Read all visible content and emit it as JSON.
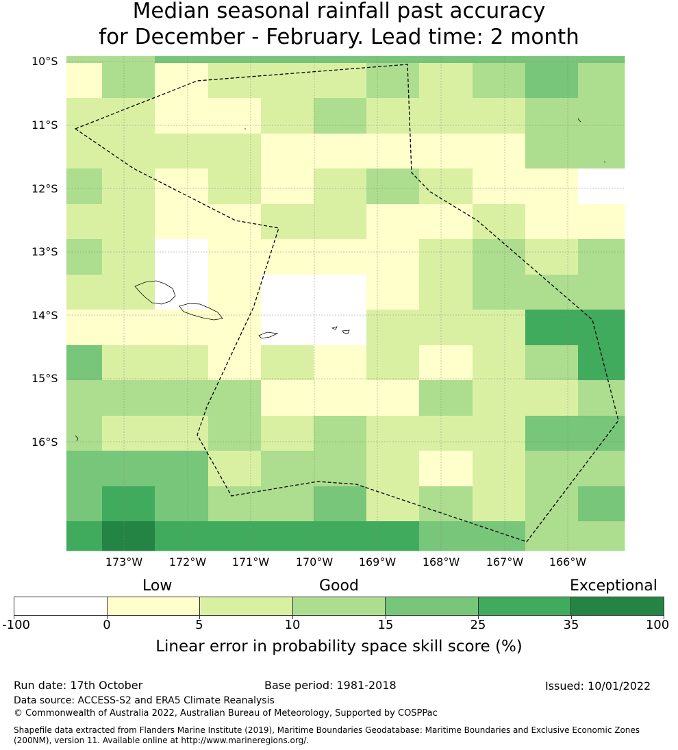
{
  "title": {
    "line1": "Median seasonal rainfall past accuracy",
    "line2": "for December - February. Lead time: 2 month"
  },
  "lat_labels": [
    "10°S",
    "11°S",
    "12°S",
    "13°S",
    "14°S",
    "15°S",
    "16°S"
  ],
  "lon_labels": [
    "173°W",
    "172°W",
    "171°W",
    "170°W",
    "169°W",
    "168°W",
    "167°W",
    "166°W"
  ],
  "legend": {
    "categories": [
      "Low",
      "Good",
      "Exceptional"
    ],
    "ticks": [
      "-100",
      "0",
      "5",
      "10",
      "15",
      "25",
      "35",
      "100"
    ],
    "colors": [
      "#ffffff",
      "#ffffcc",
      "#d9f0a3",
      "#addd8e",
      "#78c679",
      "#41ab5d",
      "#238443"
    ],
    "label": "Linear error in probability space skill score (%)"
  },
  "grid_levels": [
    [
      3,
      3,
      4,
      4,
      4,
      4,
      4,
      4,
      4,
      4,
      4
    ],
    [
      1,
      3,
      1,
      2,
      2,
      2,
      3,
      2,
      3,
      4,
      3
    ],
    [
      2,
      2,
      1,
      1,
      2,
      3,
      2,
      2,
      2,
      3,
      3
    ],
    [
      2,
      2,
      2,
      2,
      1,
      1,
      1,
      1,
      1,
      3,
      3
    ],
    [
      3,
      2,
      1,
      2,
      1,
      2,
      3,
      2,
      1,
      1,
      0
    ],
    [
      2,
      2,
      1,
      1,
      2,
      2,
      1,
      1,
      2,
      1,
      1
    ],
    [
      3,
      2,
      0,
      1,
      1,
      1,
      1,
      2,
      3,
      2,
      3
    ],
    [
      2,
      2,
      0,
      1,
      0,
      0,
      1,
      2,
      3,
      3,
      3
    ],
    [
      1,
      1,
      1,
      1,
      0,
      0,
      2,
      2,
      2,
      5,
      5
    ],
    [
      4,
      2,
      2,
      1,
      2,
      1,
      2,
      1,
      2,
      3,
      5
    ],
    [
      3,
      3,
      3,
      3,
      1,
      1,
      1,
      3,
      2,
      2,
      3
    ],
    [
      3,
      2,
      2,
      3,
      2,
      3,
      2,
      2,
      2,
      4,
      4
    ],
    [
      4,
      4,
      4,
      2,
      3,
      3,
      2,
      1,
      2,
      3,
      3
    ],
    [
      4,
      5,
      4,
      3,
      3,
      4,
      2,
      3,
      2,
      3,
      4
    ],
    [
      5,
      6,
      5,
      5,
      5,
      5,
      5,
      4,
      4,
      3,
      3
    ]
  ],
  "footer": {
    "run_date": "Run date: 17th October",
    "base_period": "Base period: 1981-2018",
    "issued": "Issued: 10/01/2022",
    "data_source": "Data source: ACCESS-S2 and ERA5 Climate Reanalysis",
    "copyright": "© Commonwealth of Australia 2022, Australian Bureau of Meteorology, Supported by COSPPac",
    "shapefile_line1": "Shapefile data extracted from Flanders Marine Institute (2019), Maritime Boundaries Geodatabase: Maritime Boundaries and Exclusive Economic Zones",
    "shapefile_line2": "(200NM), version 11. Available online at http://www.marineregions.org/."
  }
}
